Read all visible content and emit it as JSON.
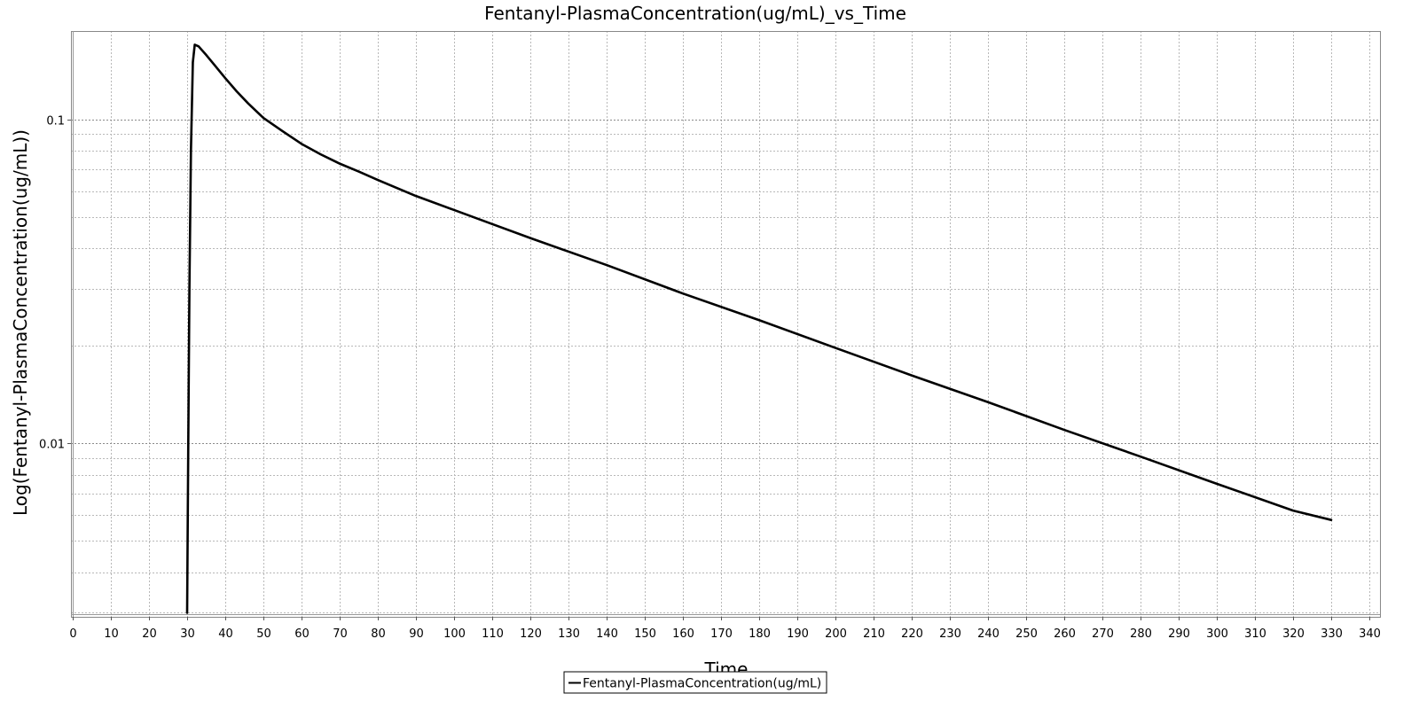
{
  "chart_data": {
    "type": "line",
    "title": "Fentanyl-PlasmaConcentration(ug/mL)_vs_Time",
    "xlabel": "Time",
    "ylabel": "Log(Fentanyl-PlasmaConcentration(ug/mL))",
    "xlim": [
      0,
      345
    ],
    "ylim": [
      0.00295,
      0.185
    ],
    "yscale": "log",
    "grid": true,
    "legend_position": "bottom-center",
    "x_ticks": [
      0,
      10,
      20,
      30,
      40,
      50,
      60,
      70,
      80,
      90,
      100,
      110,
      120,
      130,
      140,
      150,
      160,
      170,
      180,
      190,
      200,
      210,
      220,
      230,
      240,
      250,
      260,
      270,
      280,
      290,
      300,
      310,
      320,
      330,
      340
    ],
    "y_tick_labels": [
      {
        "value": 0.1,
        "label": "0.1"
      },
      {
        "value": 0.01,
        "label": "0.01"
      }
    ],
    "y_minor_grid": [
      0.003,
      0.004,
      0.005,
      0.006,
      0.007,
      0.008,
      0.009,
      0.02,
      0.03,
      0.04,
      0.05,
      0.06,
      0.07,
      0.08,
      0.09
    ],
    "series": [
      {
        "name": "Fentanyl-PlasmaConcentration(ug/mL)",
        "color": "#000000",
        "x": [
          30,
          30.3,
          30.6,
          31,
          31.5,
          32,
          33,
          35,
          37,
          40,
          43,
          46,
          50,
          55,
          60,
          65,
          70,
          75,
          80,
          90,
          100,
          110,
          120,
          140,
          160,
          180,
          200,
          220,
          240,
          260,
          280,
          300,
          320,
          330
        ],
        "y": [
          0.003,
          0.01,
          0.03,
          0.08,
          0.15,
          0.17,
          0.168,
          0.158,
          0.148,
          0.134,
          0.122,
          0.112,
          0.101,
          0.092,
          0.084,
          0.078,
          0.073,
          0.069,
          0.065,
          0.058,
          0.0525,
          0.0475,
          0.043,
          0.0355,
          0.029,
          0.024,
          0.0197,
          0.0162,
          0.0134,
          0.011,
          0.0091,
          0.0075,
          0.0062,
          0.0058
        ]
      }
    ]
  }
}
